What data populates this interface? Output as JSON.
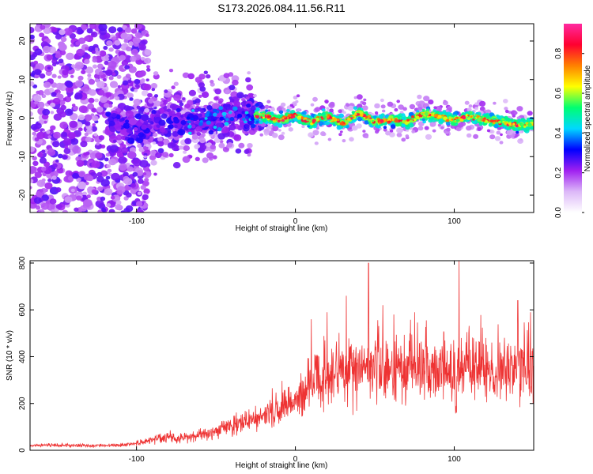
{
  "figure_title": "S173.2026.084.11.56.R11",
  "chart_data": [
    {
      "type": "heatmap",
      "name": "spectrogram",
      "xlabel": "Height of straight line (km)",
      "ylabel": "Frequency (Hz)",
      "xlim": [
        -167,
        150
      ],
      "ylim": [
        -24.5,
        24.5
      ],
      "x_ticks": [
        -100,
        0,
        100
      ],
      "x_tick_labels": [
        "-100",
        "0",
        "100"
      ],
      "y_ticks": [
        20,
        10,
        0,
        -10,
        -20
      ],
      "y_tick_labels": [
        "20",
        "10",
        "0",
        "-10",
        "-20"
      ],
      "colorbar": {
        "label": "Normalized spectral amplitude",
        "range": [
          0.0,
          0.95
        ],
        "ticks": [
          0.0,
          0.2,
          0.4,
          0.6,
          0.8
        ],
        "tick_labels": [
          "0.0",
          "0.2",
          "0.4",
          "0.6",
          "0.8"
        ],
        "colors": [
          "#ffffff",
          "#dcb8f8",
          "#a020f0",
          "#0000ff",
          "#00d8ff",
          "#00ff70",
          "#ffff00",
          "#ff8000",
          "#ff0030",
          "#ff2aa0"
        ]
      },
      "ridge": {
        "x": [
          -115,
          -100,
          -80,
          -60,
          -40,
          -30,
          -20,
          -10,
          0,
          10,
          20,
          30,
          40,
          50,
          60,
          70,
          80,
          90,
          100,
          110,
          120,
          130,
          140,
          150
        ],
        "y": [
          -1.5,
          -2.5,
          -1.0,
          -0.5,
          0.5,
          1.0,
          0.5,
          -0.5,
          0.8,
          -1.0,
          0.5,
          -1.5,
          1.5,
          -1.0,
          -0.5,
          -1.0,
          1.0,
          0.5,
          -0.5,
          0.5,
          -0.5,
          -1.0,
          -2.0,
          -1.5
        ]
      }
    },
    {
      "type": "line",
      "name": "snr",
      "xlabel": "Height of straight line (km)",
      "ylabel": "SNR (10 * v/v)",
      "xlim": [
        -167,
        150
      ],
      "ylim": [
        0,
        810
      ],
      "x_ticks": [
        -100,
        0,
        100
      ],
      "x_tick_labels": [
        "-100",
        "0",
        "100"
      ],
      "y_ticks": [
        0,
        200,
        400,
        600,
        800
      ],
      "y_tick_labels": [
        "0",
        "200",
        "400",
        "600",
        "800"
      ],
      "color": "#ee3333",
      "series": [
        {
          "name": "SNR",
          "x": [
            -167,
            -150,
            -130,
            -110,
            -95,
            -85,
            -80,
            -75,
            -70,
            -60,
            -50,
            -45,
            -40,
            -35,
            -30,
            -25,
            -20,
            -15,
            -10,
            -5,
            0,
            5,
            8,
            10,
            12,
            15,
            20,
            25,
            30,
            35,
            40,
            45,
            50,
            55,
            60,
            65,
            70,
            75,
            80,
            85,
            90,
            95,
            100,
            101,
            102,
            105,
            110,
            115,
            120,
            125,
            130,
            135,
            140,
            145,
            150
          ],
          "y": [
            20,
            22,
            20,
            22,
            35,
            55,
            60,
            45,
            55,
            65,
            80,
            95,
            105,
            115,
            125,
            130,
            140,
            160,
            180,
            200,
            210,
            240,
            250,
            270,
            300,
            310,
            320,
            330,
            340,
            350,
            350,
            345,
            350,
            345,
            340,
            345,
            350,
            340,
            345,
            350,
            340,
            335,
            330,
            150,
            320,
            340,
            345,
            350,
            340,
            330,
            340,
            350,
            345,
            340,
            340
          ]
        }
      ],
      "peaks": {
        "x": [
          10,
          20,
          32,
          46,
          55,
          62,
          75,
          103,
          140,
          148
        ],
        "y": [
          560,
          590,
          660,
          800,
          620,
          580,
          590,
          810,
          640,
          590
        ]
      }
    }
  ]
}
